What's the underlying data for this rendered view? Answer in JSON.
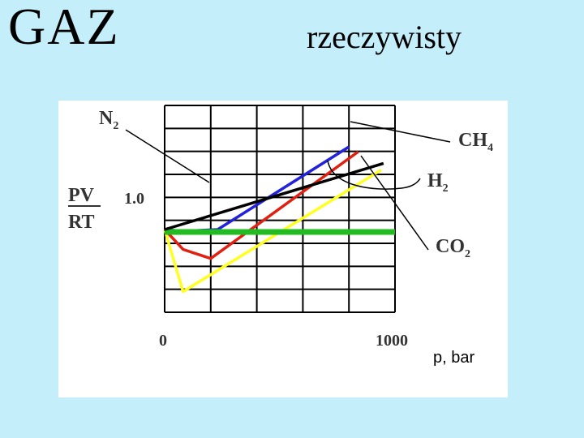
{
  "header": {
    "left_title": "GAZ",
    "right_title": "rzeczywisty"
  },
  "chart_data": {
    "type": "line",
    "title": "",
    "ylabel_numerator": "PV",
    "ylabel_denominator": "RT",
    "xunit": "p, bar",
    "x_ticks": [
      "0",
      "1000"
    ],
    "y_tick": "1.0",
    "xlim": [
      0,
      1000
    ],
    "ylim": [
      0.0,
      2.5
    ],
    "grid": true,
    "series": [
      {
        "name": "N",
        "subscript": "2",
        "color": "#000000",
        "x": [
          0,
          950
        ],
        "y": [
          1.0,
          1.8
        ]
      },
      {
        "name": "CH",
        "subscript": "4",
        "color": "#2222dd",
        "x": [
          0,
          80,
          230,
          800
        ],
        "y": [
          1.0,
          0.98,
          1.0,
          2.0
        ]
      },
      {
        "name": "H",
        "subscript": "2",
        "color": "#e02010",
        "x": [
          0,
          80,
          200,
          840
        ],
        "y": [
          1.0,
          0.76,
          0.65,
          1.94
        ]
      },
      {
        "name": "CO",
        "subscript": "2",
        "color": "#ffff22",
        "x": [
          0,
          80,
          940
        ],
        "y": [
          1.0,
          0.25,
          1.72
        ]
      },
      {
        "name": "",
        "subscript": "",
        "color": "#22bb22",
        "x": [
          0,
          1000
        ],
        "y": [
          0.97,
          0.97
        ]
      }
    ]
  }
}
